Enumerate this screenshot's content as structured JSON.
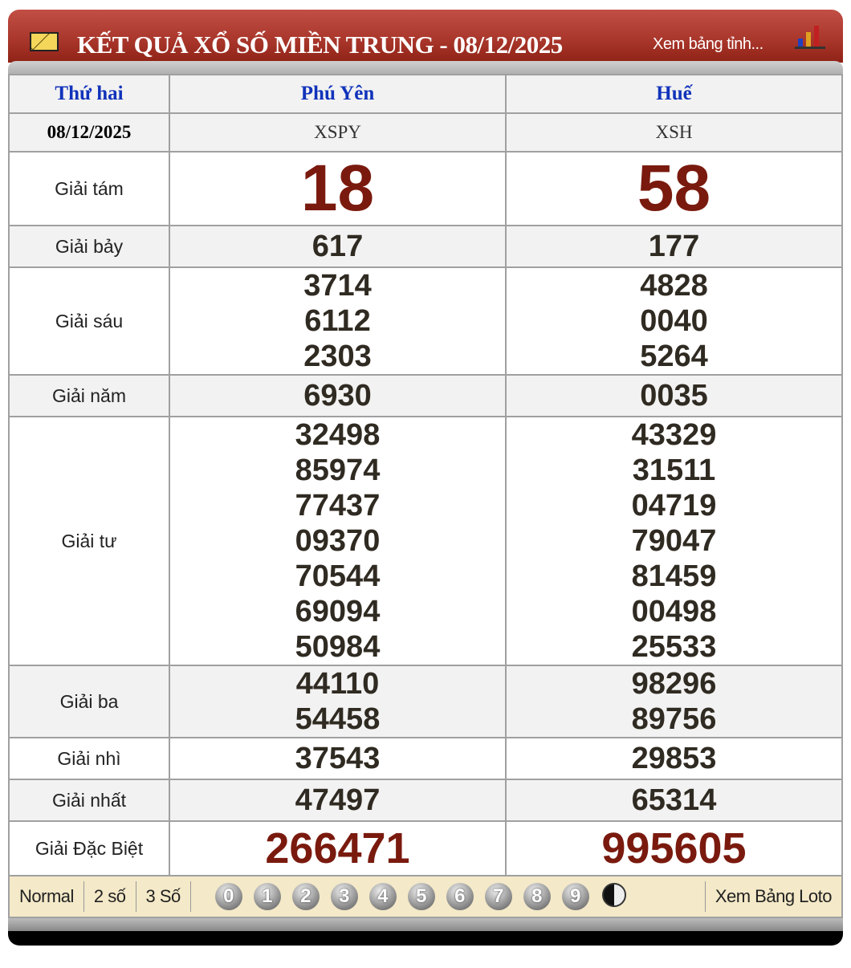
{
  "header": {
    "title": "KẾT QUẢ XỔ SỐ MIỀN TRUNG - 08/12/2025",
    "link": "Xem bảng tỉnh..."
  },
  "table": {
    "day": "Thứ hai",
    "date": "08/12/2025",
    "provinces": [
      {
        "name": "Phú Yên",
        "code": "XSPY"
      },
      {
        "name": "Huế",
        "code": "XSH"
      }
    ],
    "rows": [
      {
        "label": "Giải tám",
        "style": "big",
        "values": [
          [
            "18"
          ],
          [
            "58"
          ]
        ]
      },
      {
        "label": "Giải bảy",
        "style": "num",
        "values": [
          [
            "617"
          ],
          [
            "177"
          ]
        ]
      },
      {
        "label": "Giải sáu",
        "style": "num",
        "values": [
          [
            "3714",
            "6112",
            "2303"
          ],
          [
            "4828",
            "0040",
            "5264"
          ]
        ]
      },
      {
        "label": "Giải năm",
        "style": "num",
        "values": [
          [
            "6930"
          ],
          [
            "0035"
          ]
        ]
      },
      {
        "label": "Giải tư",
        "style": "num",
        "values": [
          [
            "32498",
            "85974",
            "77437",
            "09370",
            "70544",
            "69094",
            "50984"
          ],
          [
            "43329",
            "31511",
            "04719",
            "79047",
            "81459",
            "00498",
            "25533"
          ]
        ]
      },
      {
        "label": "Giải ba",
        "style": "num",
        "values": [
          [
            "44110",
            "54458"
          ],
          [
            "98296",
            "89756"
          ]
        ]
      },
      {
        "label": "Giải nhì",
        "style": "num",
        "values": [
          [
            "37543"
          ],
          [
            "29853"
          ]
        ]
      },
      {
        "label": "Giải nhất",
        "style": "num",
        "values": [
          [
            "47497"
          ],
          [
            "65314"
          ]
        ]
      },
      {
        "label": "Giải Đặc Biệt",
        "style": "db",
        "values": [
          [
            "266471"
          ],
          [
            "995605"
          ]
        ]
      }
    ]
  },
  "footer": {
    "tabs": [
      "Normal",
      "2 số",
      "3 Số"
    ],
    "digits": [
      "0",
      "1",
      "2",
      "3",
      "4",
      "5",
      "6",
      "7",
      "8",
      "9"
    ],
    "yin_yang_icon": "yin-yang-icon",
    "loto_link": "Xem Bảng Loto"
  },
  "colors": {
    "header": "#a8352a",
    "prize_red": "#7a1a0e",
    "province_blue": "#1133bb",
    "footer_bg": "#f4e9c8"
  }
}
